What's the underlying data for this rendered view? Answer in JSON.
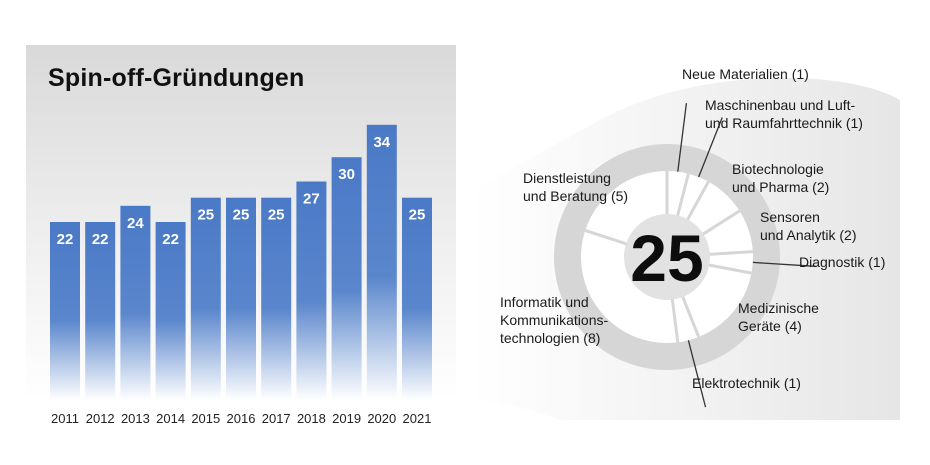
{
  "chart_data": [
    {
      "type": "bar",
      "title": "Spin-off-Gründungen",
      "categories": [
        "2011",
        "2012",
        "2013",
        "2014",
        "2015",
        "2016",
        "2017",
        "2018",
        "2019",
        "2020",
        "2021"
      ],
      "values": [
        22,
        22,
        24,
        22,
        25,
        25,
        25,
        27,
        30,
        34,
        25
      ],
      "xlabel": "",
      "ylabel": "",
      "grid": false,
      "bar_color": "#4a79c6"
    },
    {
      "type": "pie",
      "total_label": "25",
      "categories": [
        "Neue Materialien (1)",
        "Maschinenbau und Luft- und Raumfahrttechnik (1)",
        "Biotechnologie und Pharma (2)",
        "Sensoren und Analytik (2)",
        "Diagnostik (1)",
        "Medizinische Geräte (4)",
        "Elektrotechnik (1)",
        "Informatik und Kommunikations-technologien (8)",
        "Dienstleistung und Beratung (5)"
      ],
      "values": [
        1,
        1,
        2,
        2,
        1,
        4,
        1,
        8,
        5
      ],
      "labels": [
        [
          "Neue Materialien (1)"
        ],
        [
          "Maschinenbau und Luft-",
          "und Raumfahrttechnik (1)"
        ],
        [
          "Biotechnologie",
          "und Pharma (2)"
        ],
        [
          "Sensoren",
          "und Analytik (2)"
        ],
        [
          "Diagnostik (1)"
        ],
        [
          "Medizinische",
          "Geräte (4)"
        ],
        [
          "Elektrotechnik (1)"
        ],
        [
          "Informatik und",
          "Kommunikations-",
          "technologien (8)"
        ],
        [
          "Dienstleistung",
          "und Beratung (5)"
        ]
      ],
      "ring_color": "#d6d6d6",
      "center_color": "#e2e2e2"
    }
  ]
}
